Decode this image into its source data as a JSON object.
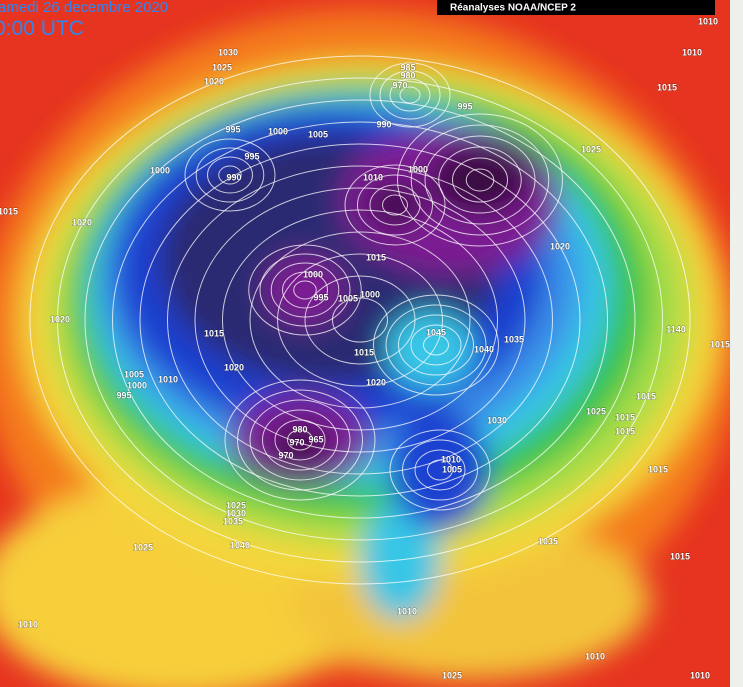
{
  "header": {
    "date": "amedi 26 decembre 2020",
    "time": "0:00 UTC",
    "source": "Réanalyses NOAA/NCEP 2"
  },
  "isobar_labels": [
    "1030",
    "1025",
    "1020",
    "985",
    "980",
    "970",
    "995",
    "995",
    "1000",
    "1005",
    "990",
    "995",
    "1000",
    "990",
    "1010",
    "1000",
    "1020",
    "1015",
    "1020",
    "1015",
    "1000",
    "995",
    "1005",
    "1000",
    "1020",
    "1015",
    "1045",
    "1040",
    "1035",
    "1015",
    "1020",
    "1005",
    "1000",
    "1010",
    "995",
    "1020",
    "1030",
    "1025",
    "1015",
    "1015",
    "1015",
    "1010",
    "1010",
    "1015",
    "1025",
    "1140",
    "1015",
    "1010",
    "1005",
    "1015",
    "980",
    "970",
    "965",
    "970",
    "1025",
    "1030",
    "1035",
    "1040",
    "1025",
    "1035",
    "1015",
    "1010",
    "1010",
    "1025",
    "1010",
    "1010"
  ]
}
